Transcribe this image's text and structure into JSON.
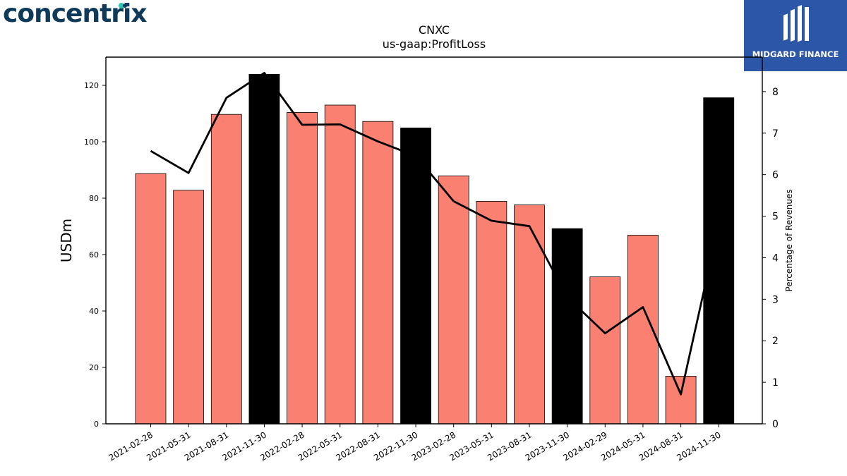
{
  "branding": {
    "left_logo_text": "concentrix",
    "right_logo_text": "MIDGARD FINANCE"
  },
  "chart_data": {
    "type": "bar",
    "title": "CNXC",
    "subtitle": "us-gaap:ProfitLoss",
    "ylabel": "USDm",
    "y2label": "Percentage of Revenues",
    "ylim": [
      0,
      130
    ],
    "y2lim": [
      0,
      8.83
    ],
    "yticks": [
      0,
      20,
      40,
      60,
      80,
      100,
      120
    ],
    "y2ticks": [
      0,
      1,
      2,
      3,
      4,
      5,
      6,
      7,
      8
    ],
    "categories": [
      "2021-02-28",
      "2021-05-31",
      "2021-08-31",
      "2021-11-30",
      "2022-02-28",
      "2022-05-31",
      "2022-08-31",
      "2022-11-30",
      "2023-02-28",
      "2023-05-31",
      "2023-08-31",
      "2023-11-30",
      "2024-02-29",
      "2024-05-31",
      "2024-08-31",
      "2024-11-30"
    ],
    "series": [
      {
        "kind": "bar",
        "axis": "left",
        "values": [
          88.7,
          82.8,
          109.7,
          123.9,
          110.4,
          113.0,
          107.2,
          104.9,
          87.9,
          78.9,
          77.6,
          69.2,
          52.1,
          66.9,
          16.9,
          115.6
        ],
        "colors": [
          "#fa8072",
          "#fa8072",
          "#fa8072",
          "#000000",
          "#fa8072",
          "#fa8072",
          "#fa8072",
          "#000000",
          "#fa8072",
          "#fa8072",
          "#fa8072",
          "#000000",
          "#fa8072",
          "#fa8072",
          "#fa8072",
          "#000000"
        ]
      },
      {
        "kind": "line",
        "axis": "right",
        "color": "#000000",
        "values": [
          6.57,
          6.04,
          7.85,
          8.45,
          7.2,
          7.21,
          6.8,
          6.45,
          5.36,
          4.89,
          4.76,
          3.05,
          2.18,
          2.81,
          0.71,
          4.8
        ]
      }
    ],
    "grid": false,
    "legend": "none"
  }
}
